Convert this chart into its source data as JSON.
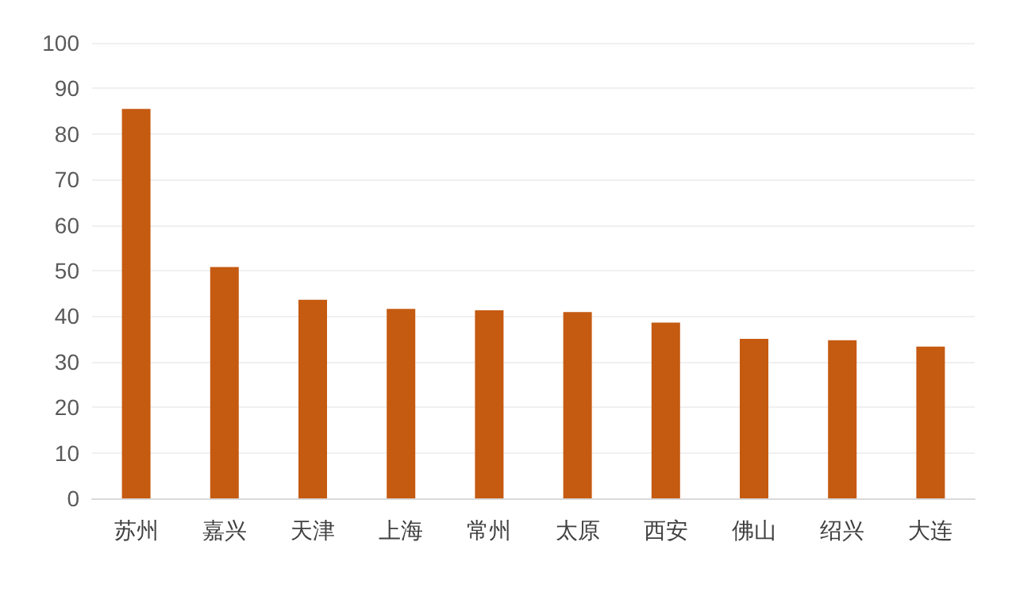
{
  "chart_data": {
    "type": "bar",
    "categories": [
      "苏州",
      "嘉兴",
      "天津",
      "上海",
      "常州",
      "太原",
      "西安",
      "佛山",
      "绍兴",
      "大连"
    ],
    "values": [
      85.5,
      50.8,
      43.6,
      41.6,
      41.3,
      40.9,
      38.6,
      35,
      34.7,
      33.3
    ],
    "color": "#c55a11",
    "ylim": [
      0,
      100
    ],
    "yticks": [
      0,
      10,
      20,
      30,
      40,
      50,
      60,
      70,
      80,
      90,
      100
    ],
    "grid": "y"
  }
}
